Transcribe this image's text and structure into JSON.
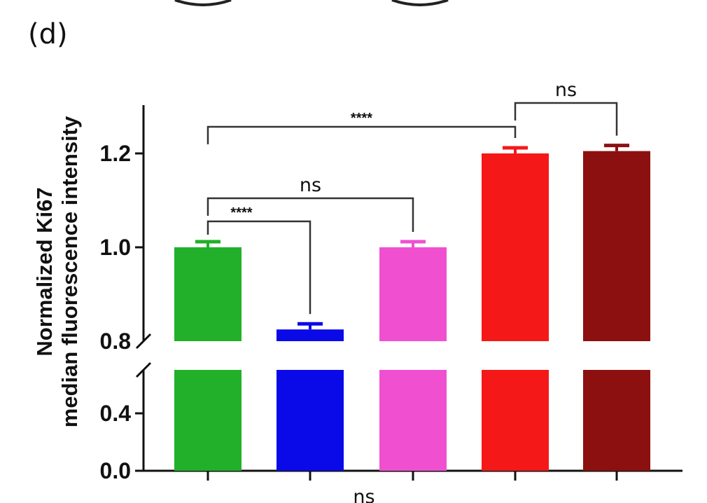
{
  "panel_label": "(d)",
  "chart_data": {
    "type": "bar",
    "title": "",
    "ylabel_lines": [
      "Normalized Ki67",
      "median fluorescence intensity"
    ],
    "xlabel": "",
    "categories": [
      "",
      "",
      "",
      "",
      ""
    ],
    "values": [
      1.0,
      0.825,
      1.0,
      1.2,
      1.205
    ],
    "errors": [
      0.012,
      0.012,
      0.012,
      0.012,
      0.012
    ],
    "colors": [
      "#22b02a",
      "#0a0ae8",
      "#f050d0",
      "#f41818",
      "#8c1010"
    ],
    "y_axis": {
      "broken": true,
      "lower_segment": [
        0.0,
        0.6
      ],
      "upper_segment": [
        0.8,
        1.3
      ],
      "lower_ticks": [
        "0.0",
        "0.4"
      ],
      "upper_ticks": [
        "0.8",
        "1.0",
        "1.2"
      ]
    },
    "grid": false,
    "legend": "none",
    "significance": [
      {
        "from": 0,
        "to": 1,
        "label": "****"
      },
      {
        "from": 0,
        "to": 2,
        "label": "ns"
      },
      {
        "from": 0,
        "to": 3,
        "label": "****"
      },
      {
        "from": 3,
        "to": 4,
        "label": "ns"
      }
    ],
    "bottom_note": "ns"
  }
}
